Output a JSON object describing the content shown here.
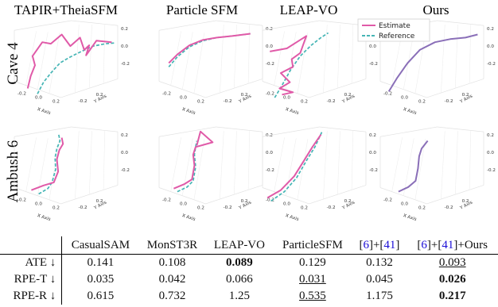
{
  "colors": {
    "estimate": "#e05aa8",
    "reference": "#45b5b5",
    "ours_line": "#8a6fb8"
  },
  "figure": {
    "methods": [
      "TAPIR+TheiaSFM",
      "Particle SFM",
      "LEAP-VO",
      "Ours"
    ],
    "rows": [
      "Cave 4",
      "Ambush 6"
    ],
    "legend": {
      "estimate": "Estimate",
      "reference": "Reference"
    },
    "axes": {
      "x_name": "X Axis",
      "y_name": "Y Axis",
      "x_ticks": [
        "-0.2",
        "0.0",
        "0.2"
      ],
      "y_ticks": [
        "-0.2",
        "0.2"
      ],
      "z_ticks": [
        "0.2",
        "0.0",
        "-0.2"
      ]
    }
  },
  "table": {
    "header": [
      "CasualSAM",
      "MonST3R",
      "LEAP-VO",
      "ParticleSFM",
      "[6]+[41]",
      "[6]+[41]+Ours"
    ],
    "rows": [
      {
        "metric": "ATE ↓",
        "values": [
          "0.141",
          "0.108",
          "0.089",
          "0.129",
          "0.132",
          "0.093"
        ],
        "best": 2,
        "second": 5
      },
      {
        "metric": "RPE-T ↓",
        "values": [
          "0.035",
          "0.042",
          "0.066",
          "0.031",
          "0.045",
          "0.026"
        ],
        "best": 5,
        "second": 3
      },
      {
        "metric": "RPE-R ↓",
        "values": [
          "0.615",
          "0.732",
          "1.25",
          "0.535",
          "1.175",
          "0.217"
        ],
        "best": 5,
        "second": 3
      }
    ]
  }
}
